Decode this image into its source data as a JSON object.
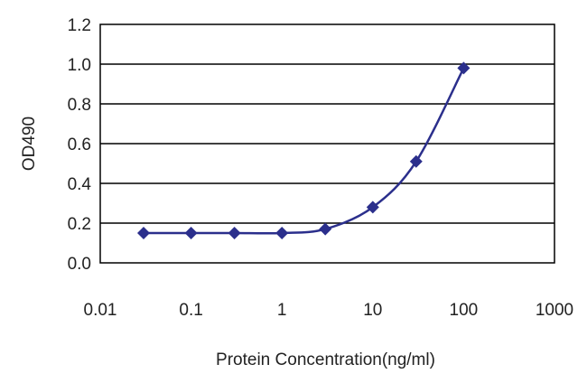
{
  "chart_data": {
    "type": "line",
    "xscale": "log",
    "xlim": [
      0.01,
      1000
    ],
    "ylim": [
      0.0,
      1.2
    ],
    "xlabel": "Protein Concentration(ng/ml)",
    "ylabel": "OD490",
    "x_ticks": [
      "0.01",
      "0.1",
      "1",
      "10",
      "100",
      "1000"
    ],
    "y_ticks": [
      "0.0",
      "0.2",
      "0.4",
      "0.6",
      "0.8",
      "1.0",
      "1.2"
    ],
    "grid": "horizontal",
    "series": [
      {
        "color": "#2b2f8c",
        "marker": "diamond",
        "x": [
          0.03,
          0.1,
          0.3,
          1,
          3,
          10,
          30,
          100
        ],
        "y": [
          0.15,
          0.15,
          0.15,
          0.15,
          0.17,
          0.28,
          0.51,
          0.98
        ]
      }
    ]
  }
}
